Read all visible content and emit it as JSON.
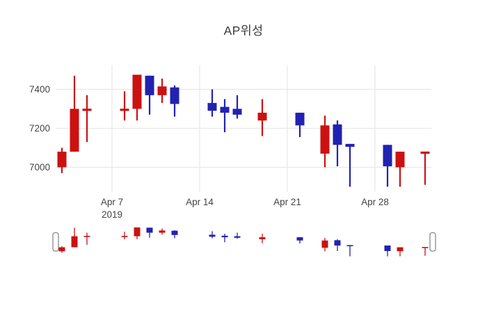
{
  "title": "AP위성",
  "colors": {
    "up": "#cc1111",
    "down": "#2222b2",
    "grid": "#e9e9e9",
    "tick_text": "#444444",
    "title_text": "#3c3c3c",
    "background": "#ffffff",
    "grabber_fill": "#ffffff",
    "grabber_border": "#7f7f7f"
  },
  "chart_data": {
    "type": "candlestick",
    "title": "AP위성",
    "legend": "none",
    "grid": "on",
    "has_rangeslider": true,
    "x_range": [
      "2019-04-02T12:00:00Z",
      "2019-05-02T12:00:00Z"
    ],
    "y_range": [
      6875,
      7523
    ],
    "slider_y_range": [
      6900,
      7475
    ],
    "y_ticks": [
      {
        "label": "7400",
        "value": 7400
      },
      {
        "label": "7200",
        "value": 7200
      },
      {
        "label": "7000",
        "value": 7000
      }
    ],
    "x_ticks": [
      {
        "label": "Apr 7",
        "sublabel": "2019",
        "date": "2019-04-07"
      },
      {
        "label": "Apr 14",
        "sublabel": "",
        "date": "2019-04-14"
      },
      {
        "label": "Apr 21",
        "sublabel": "",
        "date": "2019-04-21"
      },
      {
        "label": "Apr 28",
        "sublabel": "",
        "date": "2019-04-28"
      }
    ],
    "candles": [
      {
        "date": "2019-04-03",
        "open": 7000,
        "high": 7100,
        "low": 6970,
        "close": 7080
      },
      {
        "date": "2019-04-04",
        "open": 7080,
        "high": 7470,
        "low": 7080,
        "close": 7300
      },
      {
        "date": "2019-04-05",
        "open": 7290,
        "high": 7370,
        "low": 7130,
        "close": 7300
      },
      {
        "date": "2019-04-08",
        "open": 7290,
        "high": 7390,
        "low": 7240,
        "close": 7300
      },
      {
        "date": "2019-04-09",
        "open": 7300,
        "high": 7475,
        "low": 7240,
        "close": 7475
      },
      {
        "date": "2019-04-10",
        "open": 7470,
        "high": 7470,
        "low": 7270,
        "close": 7370
      },
      {
        "date": "2019-04-11",
        "open": 7370,
        "high": 7455,
        "low": 7330,
        "close": 7415
      },
      {
        "date": "2019-04-12",
        "open": 7410,
        "high": 7420,
        "low": 7260,
        "close": 7325
      },
      {
        "date": "2019-04-15",
        "open": 7330,
        "high": 7400,
        "low": 7260,
        "close": 7290
      },
      {
        "date": "2019-04-16",
        "open": 7310,
        "high": 7350,
        "low": 7180,
        "close": 7280
      },
      {
        "date": "2019-04-17",
        "open": 7300,
        "high": 7370,
        "low": 7250,
        "close": 7270
      },
      {
        "date": "2019-04-19",
        "open": 7240,
        "high": 7350,
        "low": 7160,
        "close": 7280
      },
      {
        "date": "2019-04-22",
        "open": 7280,
        "high": 7280,
        "low": 7155,
        "close": 7215
      },
      {
        "date": "2019-04-24",
        "open": 7070,
        "high": 7265,
        "low": 7000,
        "close": 7215
      },
      {
        "date": "2019-04-25",
        "open": 7220,
        "high": 7240,
        "low": 7005,
        "close": 7115
      },
      {
        "date": "2019-04-26",
        "open": 7120,
        "high": 7120,
        "low": 6900,
        "close": 7105
      },
      {
        "date": "2019-04-29",
        "open": 7115,
        "high": 7115,
        "low": 6900,
        "close": 7005
      },
      {
        "date": "2019-04-30",
        "open": 7000,
        "high": 7080,
        "low": 6900,
        "close": 7080
      },
      {
        "date": "2019-05-02",
        "open": 7070,
        "high": 7080,
        "low": 6910,
        "close": 7080
      }
    ]
  }
}
